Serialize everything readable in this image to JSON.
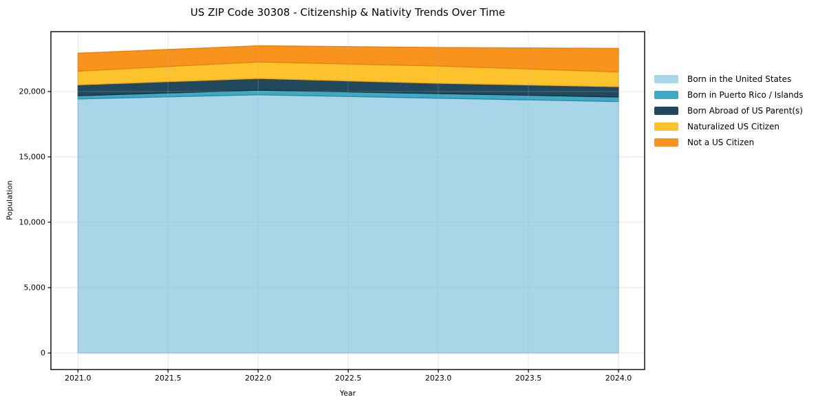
{
  "title": "US ZIP Code 30308 - Citizenship & Nativity Trends Over Time",
  "chart_data": {
    "type": "area",
    "stacked": true,
    "title": "US ZIP Code 30308 - Citizenship & Nativity Trends Over Time",
    "xlabel": "Year",
    "ylabel": "Population",
    "x": [
      2021,
      2022,
      2023,
      2024
    ],
    "series": [
      {
        "name": "Born in the United States",
        "color": "#A8D5E8",
        "edge": "#8CC3DE",
        "values": [
          19430,
          19750,
          19490,
          19230
        ]
      },
      {
        "name": "Born in Puerto Rico / Islands",
        "color": "#3FA8C3",
        "edge": "#2D89A6",
        "values": [
          250,
          350,
          350,
          350
        ]
      },
      {
        "name": "Born Abroad of US Parent(s)",
        "color": "#21485C",
        "edge": "#16313F",
        "values": [
          830,
          900,
          790,
          790
        ]
      },
      {
        "name": "Naturalized US Citizen",
        "color": "#FCC32D",
        "edge": "#EEA820",
        "values": [
          1050,
          1260,
          1320,
          1130
        ]
      },
      {
        "name": "Not a US Citizen",
        "color": "#F8941E",
        "edge": "#E67E10",
        "values": [
          1370,
          1240,
          1420,
          1800
        ]
      }
    ],
    "totals": [
      22930,
      23500,
      23370,
      23300
    ],
    "xticks": [
      2021.0,
      2021.5,
      2022.0,
      2022.5,
      2023.0,
      2023.5,
      2024.0
    ],
    "xtick_labels": [
      "2021.0",
      "2021.5",
      "2022.0",
      "2022.5",
      "2023.0",
      "2023.5",
      "2024.0"
    ],
    "yticks": [
      0,
      5000,
      10000,
      15000,
      20000
    ],
    "ytick_labels": [
      "0",
      "5,000",
      "10,000",
      "15,000",
      "20,000"
    ],
    "xlim": [
      2020.85,
      2024.145
    ],
    "ylim": [
      -1263,
      24578
    ],
    "grid": true,
    "grid_color": "#b0b0b0",
    "spine_color": "#000000",
    "legend_position": "outside-right"
  }
}
